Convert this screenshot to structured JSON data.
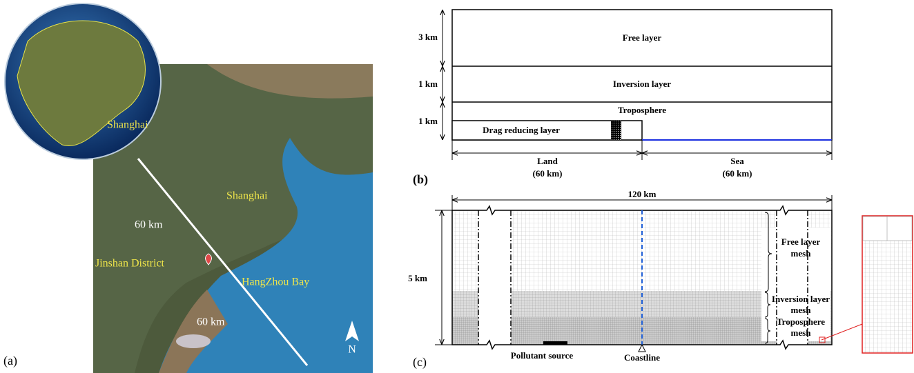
{
  "panel_a": {
    "label": "(a)",
    "globe_label": "Shanghai",
    "city": "Shanghai",
    "distance_land": "60 km",
    "district": "Jinshan District",
    "bay": "HangZhou Bay",
    "distance_sea": "60 km",
    "north": "N"
  },
  "panel_b": {
    "label": "(b)",
    "layers": [
      {
        "height": "3 km",
        "name": "Free layer"
      },
      {
        "height": "1 km",
        "name": "Inversion layer"
      },
      {
        "height": "1 km",
        "name": "Troposphere"
      }
    ],
    "drag_layer": "Drag reducing layer",
    "land": "Land",
    "land_width": "(60 km)",
    "sea": "Sea",
    "sea_width": "(60 km)"
  },
  "panel_c": {
    "label": "(c)",
    "width": "120 km",
    "height": "5 km",
    "meshes": [
      [
        "Free layer",
        "mesh"
      ],
      [
        "Inversion layer",
        "mesh"
      ],
      [
        "Troposphere",
        "mesh"
      ]
    ],
    "source": "Pollutant source",
    "coastline": "Coastline"
  }
}
